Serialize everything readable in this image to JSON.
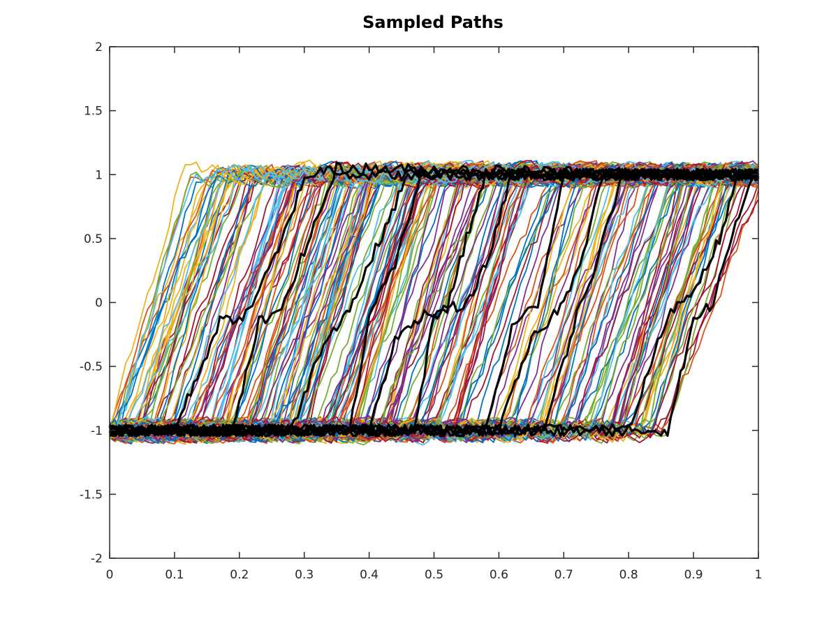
{
  "chart_data": {
    "type": "line",
    "title": "Sampled Paths",
    "xlabel": "",
    "ylabel": "",
    "xlim": [
      0,
      1
    ],
    "ylim": [
      -2,
      2
    ],
    "x_ticks": [
      "0",
      "0.1",
      "0.2",
      "0.3",
      "0.4",
      "0.5",
      "0.6",
      "0.7",
      "0.8",
      "0.9",
      "1"
    ],
    "y_ticks": [
      "2",
      "1.5",
      "1",
      "0.5",
      "0",
      "-0.5",
      "-1",
      "-1.5",
      "-2"
    ],
    "grid": false,
    "legend": null,
    "description": "Hundreds of stochastic sample paths starting near -1 and transitioning to +1; transition times spread uniformly between t≈0 and t≈0.95. A subset of highlighted paths drawn in thick black.",
    "colored_paths": {
      "count": 260,
      "palette": [
        "#0072BD",
        "#D95319",
        "#EDB120",
        "#7E2F8E",
        "#77AC30",
        "#4DBEEE",
        "#A2142F"
      ],
      "low_level": -1,
      "high_level": 1,
      "noise_amplitude": 0.08,
      "transition_start_range": [
        0.0,
        0.86
      ],
      "transition_duration": 0.13
    },
    "highlighted_paths": [
      {
        "color": "#000000",
        "points": [
          [
            0,
            -1
          ],
          [
            0.1,
            -1
          ],
          [
            0.17,
            -0.15
          ],
          [
            0.21,
            -0.1
          ],
          [
            0.26,
            0.4
          ],
          [
            0.3,
            0.98
          ],
          [
            0.34,
            1.05
          ],
          [
            0.38,
            1
          ],
          [
            1,
            1
          ]
        ]
      },
      {
        "color": "#000000",
        "points": [
          [
            0,
            -1
          ],
          [
            0.19,
            -1
          ],
          [
            0.23,
            -0.15
          ],
          [
            0.26,
            -0.1
          ],
          [
            0.3,
            0.4
          ],
          [
            0.35,
            1.05
          ],
          [
            1,
            1
          ]
        ]
      },
      {
        "color": "#000000",
        "points": [
          [
            0,
            -1
          ],
          [
            0.28,
            -1
          ],
          [
            0.33,
            -0.3
          ],
          [
            0.37,
            -0.05
          ],
          [
            0.4,
            0.3
          ],
          [
            0.46,
            1
          ],
          [
            1,
            1
          ]
        ]
      },
      {
        "color": "#000000",
        "points": [
          [
            0,
            -1
          ],
          [
            0.37,
            -1
          ],
          [
            0.4,
            -0.1
          ],
          [
            0.44,
            0.3
          ],
          [
            0.48,
            1
          ],
          [
            1,
            1
          ]
        ]
      },
      {
        "color": "#000000",
        "points": [
          [
            0,
            -1
          ],
          [
            0.4,
            -1
          ],
          [
            0.44,
            -0.3
          ],
          [
            0.48,
            -0.1
          ],
          [
            0.52,
            -0.05
          ],
          [
            0.55,
            0.5
          ],
          [
            0.58,
            1
          ],
          [
            1,
            1
          ]
        ]
      },
      {
        "color": "#000000",
        "points": [
          [
            0,
            -1
          ],
          [
            0.47,
            -1
          ],
          [
            0.5,
            -0.1
          ],
          [
            0.55,
            0
          ],
          [
            0.58,
            0.3
          ],
          [
            0.62,
            1
          ],
          [
            1,
            1
          ]
        ]
      },
      {
        "color": "#000000",
        "points": [
          [
            0,
            -1
          ],
          [
            0.58,
            -1
          ],
          [
            0.62,
            -0.2
          ],
          [
            0.66,
            0
          ],
          [
            0.68,
            0.5
          ],
          [
            0.7,
            1
          ],
          [
            1,
            1
          ]
        ]
      },
      {
        "color": "#000000",
        "points": [
          [
            0,
            -1
          ],
          [
            0.6,
            -1
          ],
          [
            0.65,
            -0.3
          ],
          [
            0.7,
            0
          ],
          [
            0.73,
            0.4
          ],
          [
            0.76,
            1
          ],
          [
            1,
            1
          ]
        ]
      },
      {
        "color": "#000000",
        "points": [
          [
            0,
            -1
          ],
          [
            0.67,
            -1
          ],
          [
            0.72,
            -0.1
          ],
          [
            0.75,
            0.3
          ],
          [
            0.79,
            1
          ],
          [
            1,
            1
          ]
        ]
      },
      {
        "color": "#000000",
        "points": [
          [
            0,
            -1
          ],
          [
            0.8,
            -1
          ],
          [
            0.86,
            -0.1
          ],
          [
            0.9,
            0.1
          ],
          [
            0.94,
            0.5
          ],
          [
            0.97,
            1
          ],
          [
            1,
            1
          ]
        ]
      },
      {
        "color": "#000000",
        "points": [
          [
            0,
            -1
          ],
          [
            0.86,
            -1
          ],
          [
            0.9,
            -0.15
          ],
          [
            0.93,
            0
          ],
          [
            0.95,
            0.4
          ],
          [
            0.99,
            1
          ],
          [
            1,
            1
          ]
        ]
      }
    ]
  }
}
